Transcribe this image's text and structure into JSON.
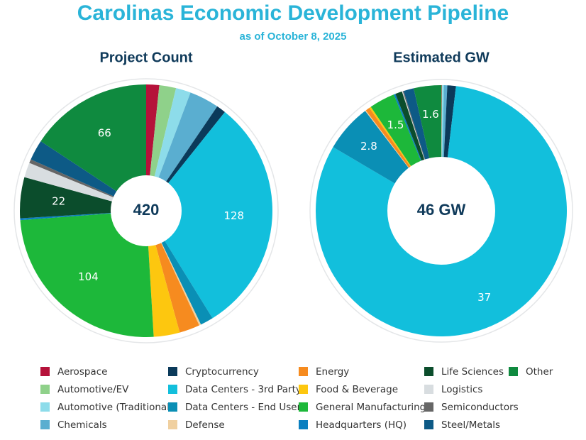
{
  "title": "Carolinas Economic Development Pipeline",
  "subtitle": "as of October 8, 2025",
  "chart_data": [
    {
      "type": "donut",
      "title": "Project Count",
      "center_label": 420,
      "categories": [
        "Aerospace",
        "Automotive/EV",
        "Automotive (Traditional)",
        "Chemicals",
        "Cryptocurrency",
        "Data Centers - 3rd Party",
        "Data Centers - End User",
        "Defense",
        "Energy",
        "Food & Beverage",
        "General Manufacturing",
        "Headquarters (HQ)",
        "Life Sciences",
        "Logistics",
        "Semiconductors",
        "Steel/Metals",
        "Other"
      ],
      "colors": [
        "#b5123a",
        "#8fd18a",
        "#8ddcea",
        "#5aaed0",
        "#0b3a5a",
        "#12bfdc",
        "#0a8fb5",
        "#f0d0a0",
        "#f68b1f",
        "#fdc70f",
        "#1db83a",
        "#0a7fc0",
        "#0b4d2c",
        "#d8dde0",
        "#666666",
        "#0d5a86",
        "#0f8a3f"
      ],
      "values": [
        7,
        9,
        8,
        16,
        5,
        128,
        7,
        1,
        11,
        14,
        104,
        1,
        22,
        8,
        2,
        11,
        66
      ],
      "value_labels": [
        null,
        null,
        null,
        null,
        null,
        "128",
        null,
        null,
        null,
        null,
        "104",
        null,
        "22",
        null,
        null,
        null,
        "66"
      ]
    },
    {
      "type": "donut",
      "title": "Estimated GW",
      "center_label": "46 GW",
      "categories": [
        "Aerospace",
        "Automotive/EV",
        "Automotive (Traditional)",
        "Chemicals",
        "Cryptocurrency",
        "Data Centers - 3rd Party",
        "Data Centers - End User",
        "Defense",
        "Energy",
        "Food & Beverage",
        "General Manufacturing",
        "Headquarters (HQ)",
        "Life Sciences",
        "Logistics",
        "Semiconductors",
        "Steel/Metals",
        "Other"
      ],
      "colors": [
        "#b5123a",
        "#8fd18a",
        "#8ddcea",
        "#5aaed0",
        "#0b3a5a",
        "#12bfdc",
        "#0a8fb5",
        "#f0d0a0",
        "#f68b1f",
        "#fdc70f",
        "#1db83a",
        "#0a7fc0",
        "#0b4d2c",
        "#d8dde0",
        "#666666",
        "#0d5a86",
        "#0f8a3f"
      ],
      "values": [
        0.02,
        0.03,
        0.1,
        0.2,
        0.5,
        37,
        2.8,
        0.05,
        0.25,
        0.1,
        1.5,
        0.1,
        0.4,
        0.05,
        0.05,
        0.6,
        1.6
      ],
      "value_labels": [
        null,
        null,
        null,
        null,
        null,
        "37",
        "2.8",
        null,
        null,
        null,
        "1.5",
        null,
        null,
        null,
        null,
        null,
        "1.6"
      ]
    }
  ]
}
